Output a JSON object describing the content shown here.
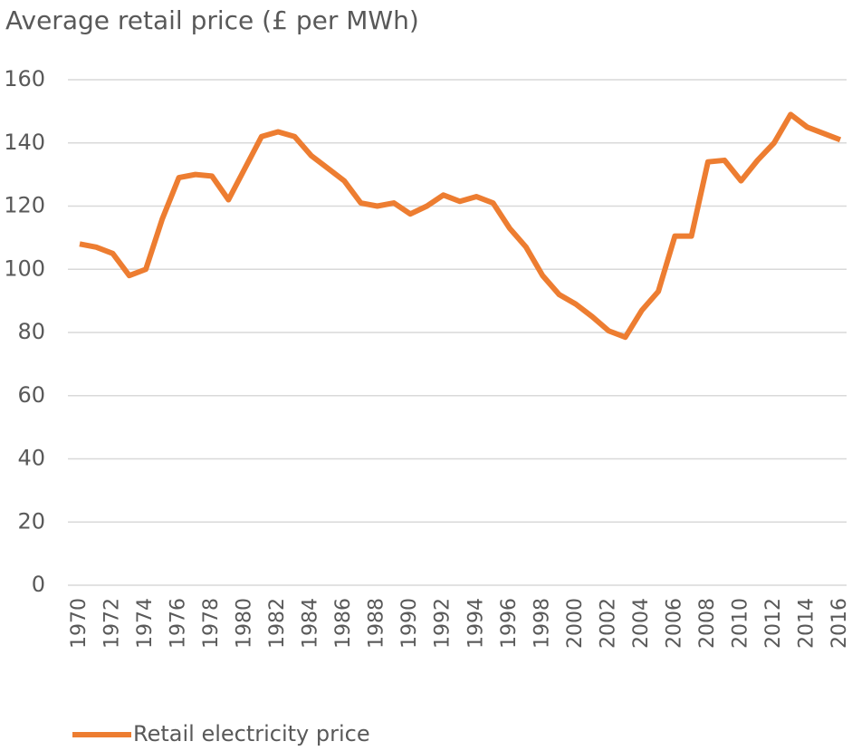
{
  "chart_data": {
    "type": "line",
    "title": "Average retail price (£ per MWh)",
    "x": [
      1970,
      1971,
      1972,
      1973,
      1974,
      1975,
      1976,
      1977,
      1978,
      1979,
      1980,
      1981,
      1982,
      1983,
      1984,
      1985,
      1986,
      1987,
      1988,
      1989,
      1990,
      1991,
      1992,
      1993,
      1994,
      1995,
      1996,
      1997,
      1998,
      1999,
      2000,
      2001,
      2002,
      2003,
      2004,
      2005,
      2006,
      2007,
      2008,
      2009,
      2010,
      2011,
      2012,
      2013,
      2014,
      2015,
      2016
    ],
    "series": [
      {
        "name": "Retail electricity price",
        "color": "#ed7d31",
        "values": [
          108,
          107,
          105,
          98,
          100,
          116,
          129,
          130,
          129.5,
          122,
          132,
          142,
          143.5,
          142,
          136,
          132,
          128,
          121,
          120,
          121,
          117.5,
          120,
          123.5,
          121.5,
          123,
          121,
          113,
          107,
          98,
          92,
          89,
          85,
          80.5,
          78.5,
          87,
          93,
          110.5,
          110.5,
          134,
          134.5,
          128,
          134.5,
          140,
          149,
          145,
          143,
          141
        ]
      }
    ],
    "xlim": [
      1970,
      2016
    ],
    "xticks": [
      1970,
      1972,
      1974,
      1976,
      1978,
      1980,
      1982,
      1984,
      1986,
      1988,
      1990,
      1992,
      1994,
      1996,
      1998,
      2000,
      2002,
      2004,
      2006,
      2008,
      2010,
      2012,
      2014,
      2016
    ],
    "ylim": [
      0,
      160
    ],
    "yticks": [
      0,
      20,
      40,
      60,
      80,
      100,
      120,
      140,
      160
    ],
    "grid": true,
    "legend": "bottom"
  }
}
